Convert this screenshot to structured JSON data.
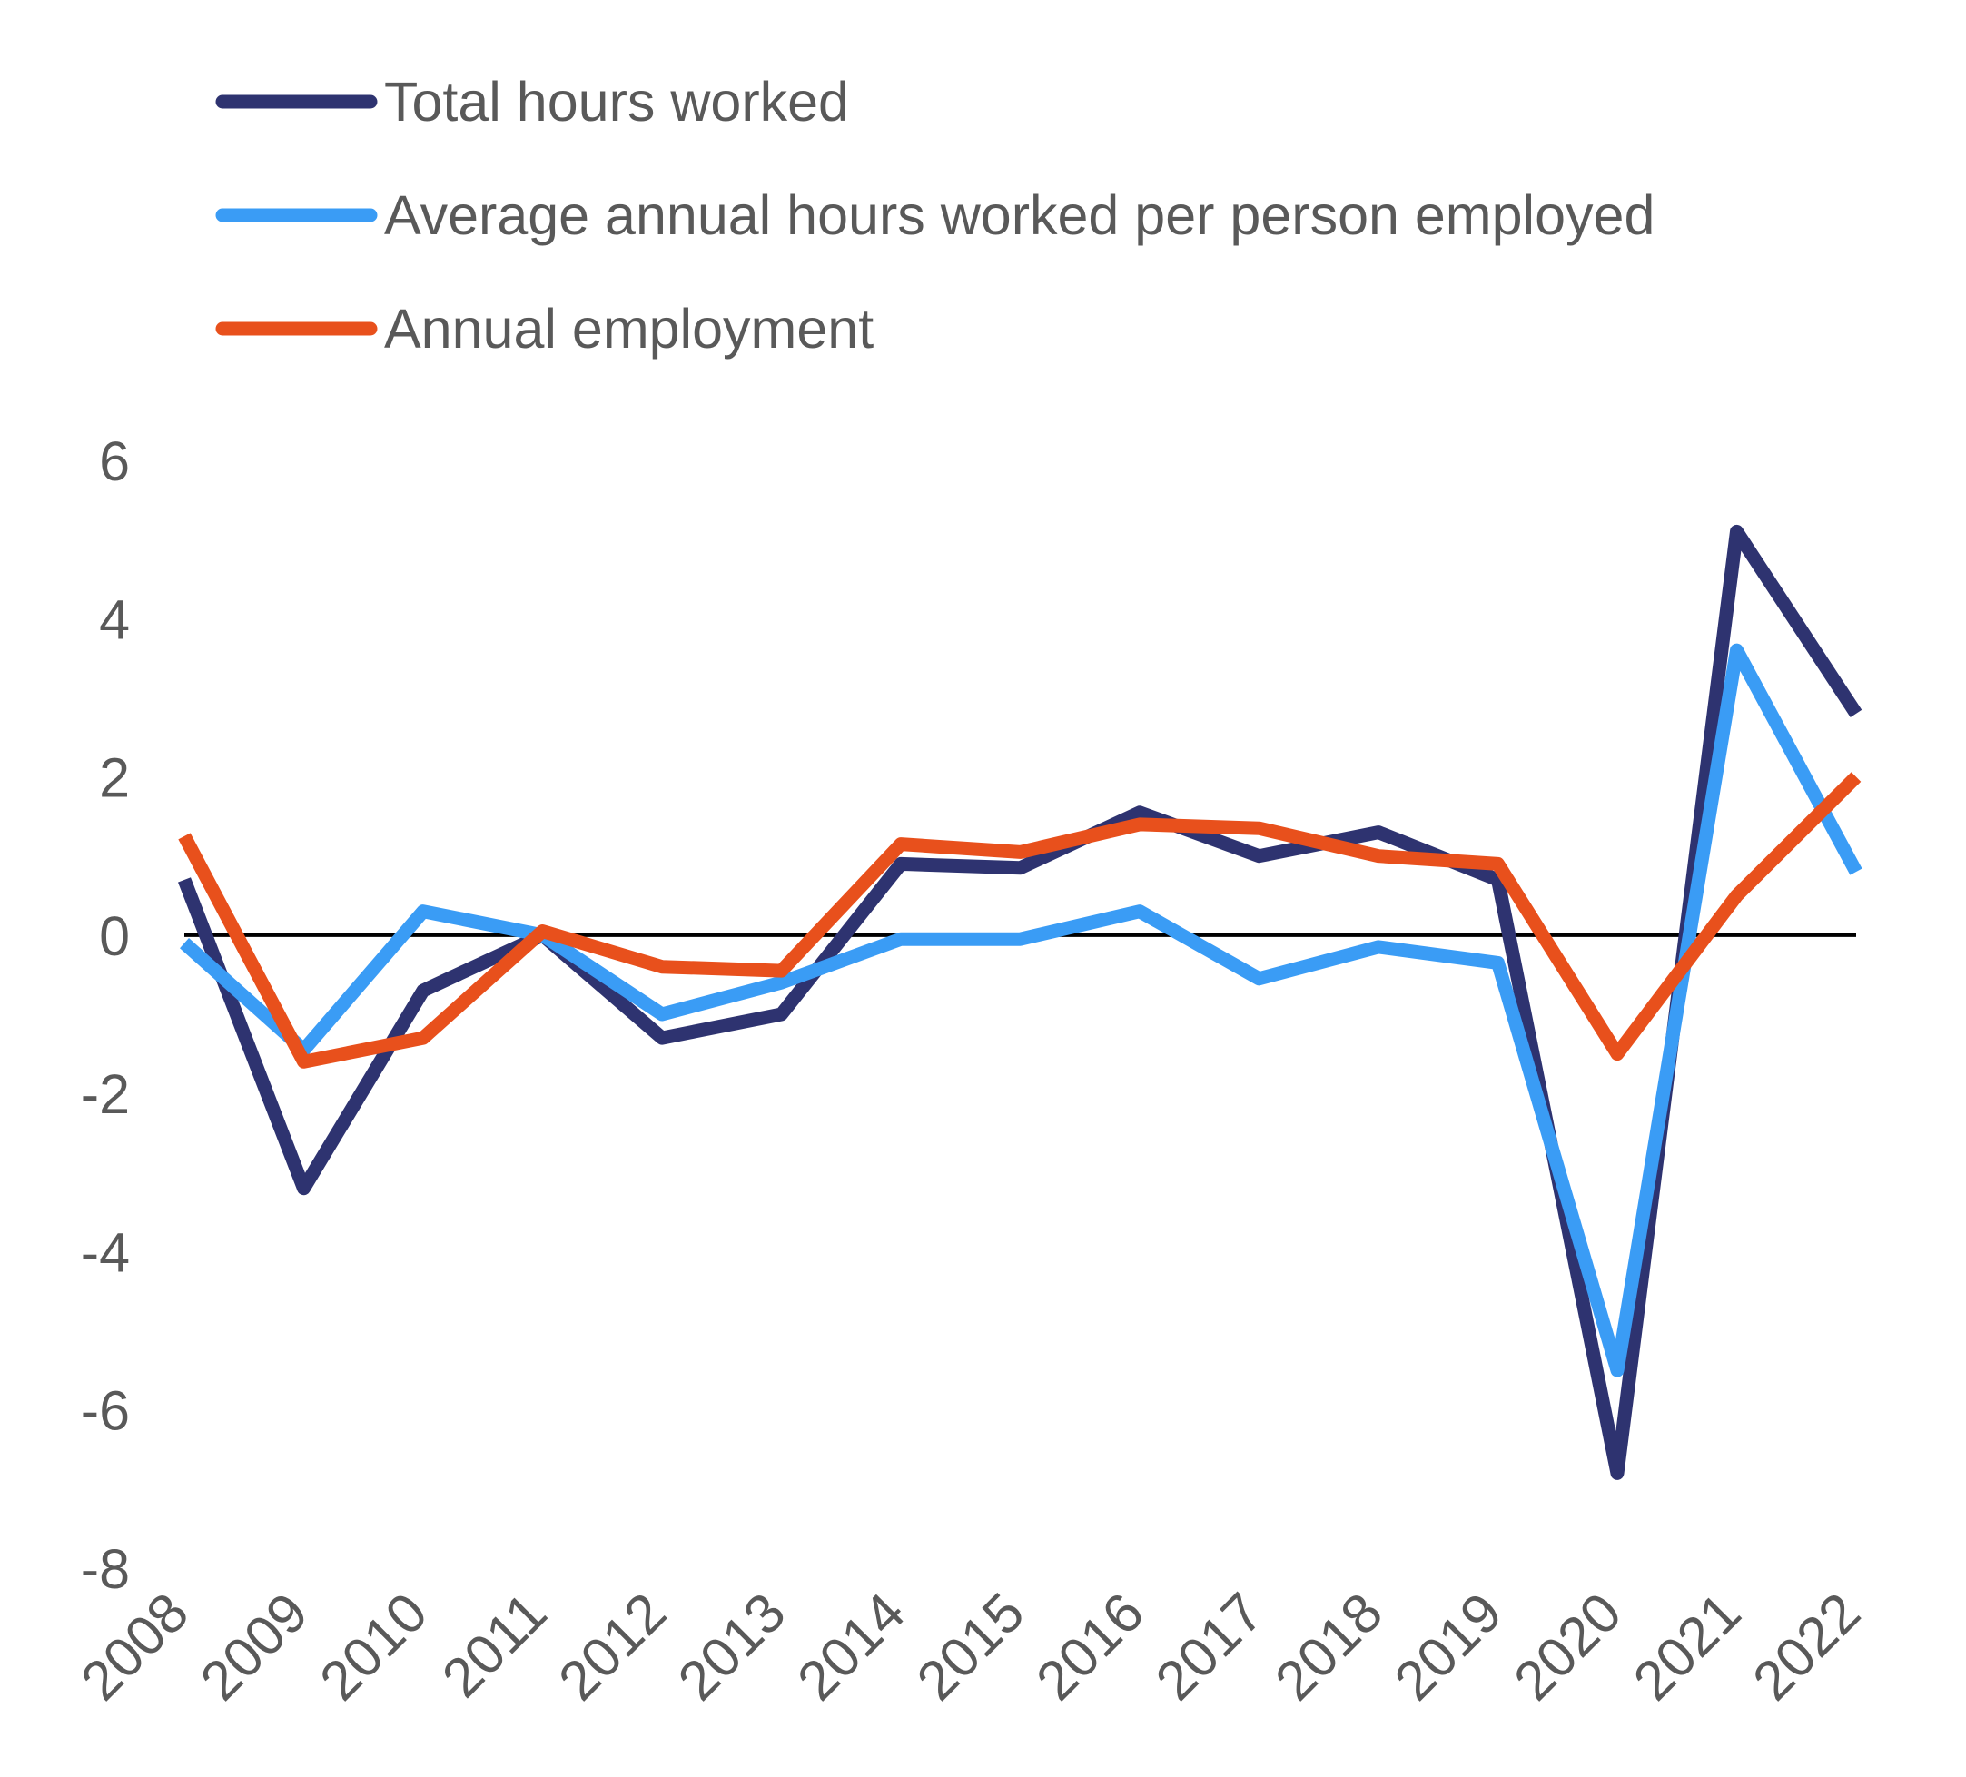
{
  "chart_data": {
    "type": "line",
    "title": "",
    "xlabel": "",
    "ylabel": "",
    "x": [
      "2008",
      "2009",
      "2010",
      "2011",
      "2012",
      "2013",
      "2014",
      "2015",
      "2016",
      "2017",
      "2018",
      "2019",
      "2020",
      "2021",
      "2022"
    ],
    "ylim": [
      -8,
      6
    ],
    "yticks": [
      6,
      4,
      2,
      0,
      -2,
      -4,
      -6,
      -8
    ],
    "grid": false,
    "zero_line": true,
    "legend_position": "top-left",
    "series": [
      {
        "name": "Total hours worked",
        "color": "#2e3370",
        "values": [
          0.7,
          -3.2,
          -0.7,
          0.0,
          -1.3,
          -1.0,
          0.9,
          0.85,
          1.55,
          1.0,
          1.3,
          0.7,
          -6.8,
          5.1,
          2.8
        ]
      },
      {
        "name": "Average annual hours worked per person employed",
        "color": "#3a9cf5",
        "values": [
          -0.1,
          -1.45,
          0.3,
          0.0,
          -1.0,
          -0.6,
          -0.05,
          -0.05,
          0.3,
          -0.55,
          -0.15,
          -0.35,
          -5.5,
          3.6,
          0.8
        ]
      },
      {
        "name": "Annual employment",
        "color": "#e8501c",
        "values": [
          1.25,
          -1.6,
          -1.3,
          0.05,
          -0.4,
          -0.45,
          1.15,
          1.05,
          1.4,
          1.35,
          1.0,
          0.9,
          -1.5,
          0.5,
          2.0
        ]
      }
    ]
  }
}
